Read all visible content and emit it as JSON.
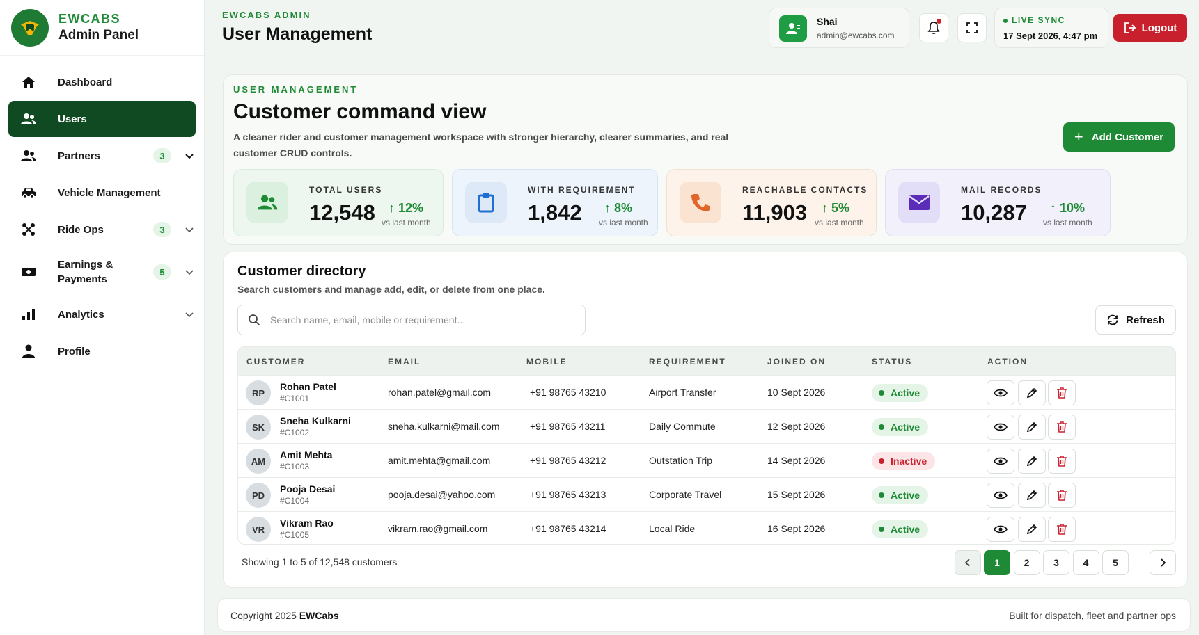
{
  "brand": {
    "name": "EWCABS",
    "subtitle": "Admin Panel"
  },
  "sidebar": {
    "items": [
      {
        "label": "Dashboard",
        "icon": "home-icon",
        "active": false
      },
      {
        "label": "Users",
        "icon": "users-icon",
        "active": true
      },
      {
        "label": "Partners",
        "icon": "partners-icon",
        "badge": "3",
        "chevron": true
      },
      {
        "label": "Vehicle Management",
        "icon": "car-icon"
      },
      {
        "label": "Ride Ops",
        "icon": "ride-ops-icon",
        "badge": "3",
        "chevron": true
      },
      {
        "label": "Earnings & Payments",
        "icon": "money-icon",
        "badge": "5",
        "chevron": true
      },
      {
        "label": "Analytics",
        "icon": "analytics-icon",
        "chevron": true
      },
      {
        "label": "Profile",
        "icon": "profile-icon"
      }
    ]
  },
  "header": {
    "kicker": "EWCABS ADMIN",
    "title": "User Management",
    "user": {
      "name": "Shai",
      "email": "admin@ewcabs.com"
    },
    "sync": {
      "label": "LIVE SYNC",
      "time": "17 Sept 2026, 4:47 pm"
    },
    "logout_label": "Logout"
  },
  "hero": {
    "kicker": "USER MANAGEMENT",
    "title": "Customer command view",
    "description": "A cleaner rider and customer management workspace with stronger hierarchy, clearer summaries, and real customer CRUD controls.",
    "add_label": "Add Customer"
  },
  "stats": [
    {
      "label": "TOTAL USERS",
      "value": "12,548",
      "change": "12%",
      "sub": "vs last month",
      "icon": "users-icon",
      "bg": "#eef7ef",
      "border": "#d7ecd9",
      "icon_bg": "#dbf0de",
      "icon_color": "#1e8a35"
    },
    {
      "label": "WITH REQUIREMENT",
      "value": "1,842",
      "change": "8%",
      "sub": "vs last month",
      "icon": "clipboard-icon",
      "bg": "#edf4fb",
      "border": "#d6e5f3",
      "icon_bg": "#dde9f6",
      "icon_color": "#1f6fd1"
    },
    {
      "label": "REACHABLE CONTACTS",
      "value": "11,903",
      "change": "5%",
      "sub": "vs last month",
      "icon": "phone-icon",
      "bg": "#fdf3ea",
      "border": "#f3e1cf",
      "icon_bg": "#fbe3d1",
      "icon_color": "#e0652a"
    },
    {
      "label": "MAIL RECORDS",
      "value": "10,287",
      "change": "10%",
      "sub": "vs last month",
      "icon": "mail-icon",
      "bg": "#f2f0fb",
      "border": "#e2ddf4",
      "icon_bg": "#e3def7",
      "icon_color": "#5b2db8"
    }
  ],
  "directory": {
    "title": "Customer directory",
    "subtitle": "Search customers and manage add, edit, or delete from one place.",
    "search_placeholder": "Search name, email, mobile or requirement...",
    "refresh_label": "Refresh",
    "columns": [
      "CUSTOMER",
      "EMAIL",
      "MOBILE",
      "REQUIREMENT",
      "JOINED ON",
      "STATUS",
      "ACTION"
    ],
    "rows": [
      {
        "initials": "RP",
        "name": "Rohan Patel",
        "id": "#C1001",
        "email": "rohan.patel@gmail.com",
        "mobile": "+91 98765 43210",
        "requirement": "Airport Transfer",
        "joined": "10 Sept 2026",
        "status": "Active"
      },
      {
        "initials": "SK",
        "name": "Sneha Kulkarni",
        "id": "#C1002",
        "email": "sneha.kulkarni@mail.com",
        "mobile": "+91 98765 43211",
        "requirement": "Daily Commute",
        "joined": "12 Sept 2026",
        "status": "Active"
      },
      {
        "initials": "AM",
        "name": "Amit Mehta",
        "id": "#C1003",
        "email": "amit.mehta@gmail.com",
        "mobile": "+91 98765 43212",
        "requirement": "Outstation Trip",
        "joined": "14 Sept 2026",
        "status": "Inactive"
      },
      {
        "initials": "PD",
        "name": "Pooja Desai",
        "id": "#C1004",
        "email": "pooja.desai@yahoo.com",
        "mobile": "+91 98765 43213",
        "requirement": "Corporate Travel",
        "joined": "15 Sept 2026",
        "status": "Active"
      },
      {
        "initials": "VR",
        "name": "Vikram Rao",
        "id": "#C1005",
        "email": "vikram.rao@gmail.com",
        "mobile": "+91 98765 43214",
        "requirement": "Local Ride",
        "joined": "16 Sept 2026",
        "status": "Active"
      }
    ],
    "showing": "Showing 1 to 5 of 12,548 customers",
    "pages": [
      "1",
      "2",
      "3",
      "4",
      "5"
    ],
    "current_page": "1"
  },
  "footer": {
    "copyright": "Copyright 2025",
    "brand": "EWCabs",
    "tagline": "Built for dispatch, fleet and partner ops"
  }
}
